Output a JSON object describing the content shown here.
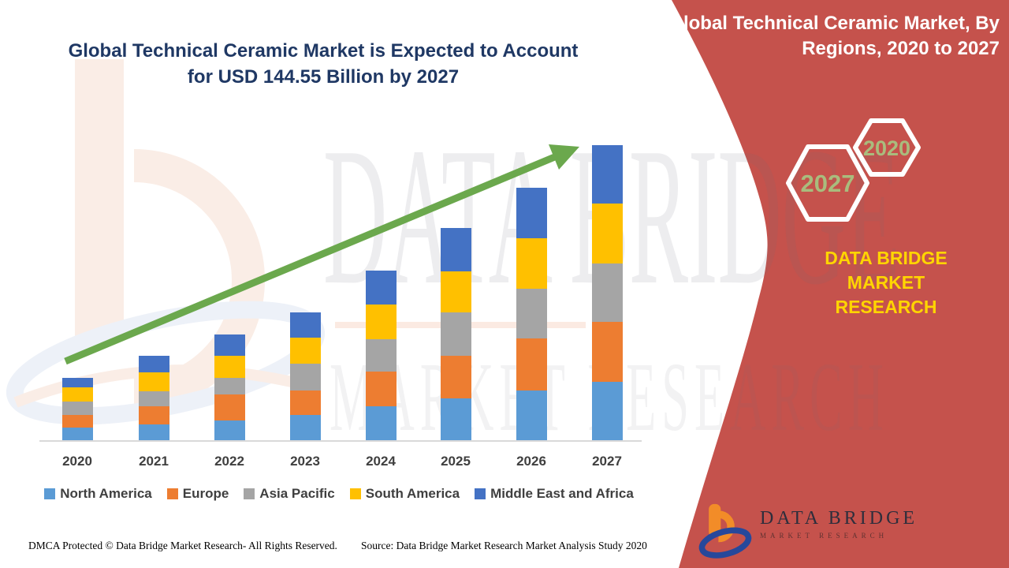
{
  "header": {
    "title_line1": "Global Technical Ceramic Market is Expected to Account",
    "title_line2": "for USD 144.55 Billion by 2027",
    "title_color": "#1F3864"
  },
  "side_panel": {
    "title_line1": "Global Technical Ceramic Market, By",
    "title_line2": "Regions, 2020 to 2027",
    "bg_color": "#C5524C",
    "hexagons": [
      {
        "label": "2027"
      },
      {
        "label": "2020"
      }
    ],
    "hexagon_label_color": "#A9BC7D",
    "brand_line1": "DATA BRIDGE MARKET",
    "brand_line2": "RESEARCH",
    "brand_color": "#FFD500"
  },
  "logo": {
    "line1": "DATA BRIDGE",
    "line2": "MARKET RESEARCH"
  },
  "watermark": {
    "line1": "DATA BRIDGE",
    "line2": "MARKET RESEARCH"
  },
  "footer": {
    "left": "DMCA Protected © Data Bridge Market Research- All Rights Reserved.",
    "right": "Source: Data Bridge Market Research Market Analysis Study 2020"
  },
  "chart_data": {
    "type": "bar",
    "stacked": true,
    "title": "Global Technical Ceramic Market is Expected to Account for USD 144.55 Billion by 2027",
    "unit": "USD Billion",
    "xlabel": "",
    "ylabel": "",
    "value_axis_visible": false,
    "grid": false,
    "legend_position": "bottom",
    "categories": [
      "2020",
      "2021",
      "2022",
      "2023",
      "2024",
      "2025",
      "2026",
      "2027"
    ],
    "series": [
      {
        "name": "North America",
        "color": "#5B9BD5",
        "values": [
          6.0,
          7.7,
          9.7,
          12.4,
          16.5,
          20.6,
          24.2,
          28.7
        ]
      },
      {
        "name": "Europe",
        "color": "#ED7D31",
        "values": [
          6.5,
          9.0,
          12.9,
          11.9,
          17.0,
          20.8,
          25.8,
          29.3
        ]
      },
      {
        "name": "Asia Pacific",
        "color": "#A5A5A5",
        "values": [
          6.5,
          7.3,
          8.0,
          13.3,
          15.9,
          21.3,
          24.1,
          28.7
        ]
      },
      {
        "name": "South America",
        "color": "#FFC000",
        "values": [
          6.8,
          9.4,
          10.7,
          12.5,
          17.1,
          20.1,
          24.9,
          29.4
        ]
      },
      {
        "name": "Middle East and Africa",
        "color": "#4472C4",
        "values": [
          4.8,
          8.0,
          10.3,
          12.6,
          16.4,
          21.2,
          24.5,
          28.4
        ]
      }
    ],
    "totals_estimated": [
      30.6,
      41.4,
      51.6,
      62.7,
      82.9,
      104.0,
      123.5,
      144.55
    ],
    "highlight_value_2027": "USD 144.55 Billion",
    "trend_arrow": true,
    "arrow_color": "#6BA84D"
  }
}
